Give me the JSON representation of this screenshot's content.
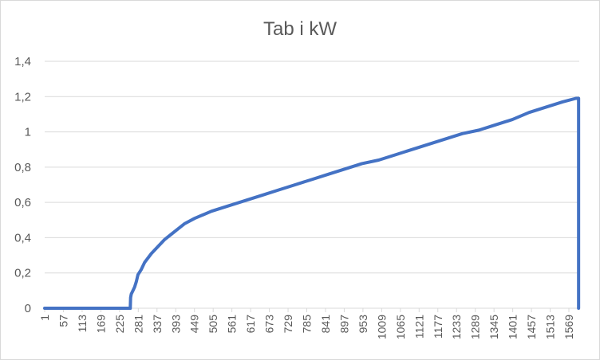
{
  "chart_data": {
    "type": "line",
    "title": "Tab i kW",
    "xlabel": "",
    "ylabel": "",
    "x_range": [
      1,
      1600
    ],
    "x_tick_labels": [
      "1",
      "57",
      "113",
      "169",
      "225",
      "281",
      "337",
      "393",
      "449",
      "505",
      "561",
      "617",
      "673",
      "729",
      "785",
      "841",
      "897",
      "953",
      "1009",
      "1065",
      "1121",
      "1177",
      "1233",
      "1289",
      "1345",
      "1401",
      "1457",
      "1513",
      "1569"
    ],
    "ylim": [
      0,
      1.4
    ],
    "y_tick_labels": [
      "0",
      "0,2",
      "0,4",
      "0,6",
      "0,8",
      "1",
      "1,2",
      "1,4"
    ],
    "grid": true,
    "legend": "none",
    "color": "#4472C4",
    "series": [
      {
        "x": [
          1,
          100,
          200,
          257,
          258,
          260,
          265,
          270,
          275,
          280,
          290,
          300,
          320,
          340,
          360,
          380,
          400,
          420,
          450,
          500,
          550,
          600,
          650,
          700,
          750,
          800,
          850,
          900,
          950,
          1000,
          1050,
          1100,
          1150,
          1200,
          1250,
          1300,
          1350,
          1400,
          1450,
          1500,
          1550,
          1590,
          1598,
          1598
        ],
        "y": [
          0,
          0,
          0,
          0,
          0.06,
          0.08,
          0.1,
          0.12,
          0.15,
          0.19,
          0.22,
          0.26,
          0.31,
          0.35,
          0.39,
          0.42,
          0.45,
          0.48,
          0.51,
          0.55,
          0.58,
          0.61,
          0.64,
          0.67,
          0.7,
          0.73,
          0.76,
          0.79,
          0.82,
          0.84,
          0.87,
          0.9,
          0.93,
          0.96,
          0.99,
          1.01,
          1.04,
          1.07,
          1.11,
          1.14,
          1.17,
          1.19,
          1.19,
          0
        ]
      }
    ]
  }
}
